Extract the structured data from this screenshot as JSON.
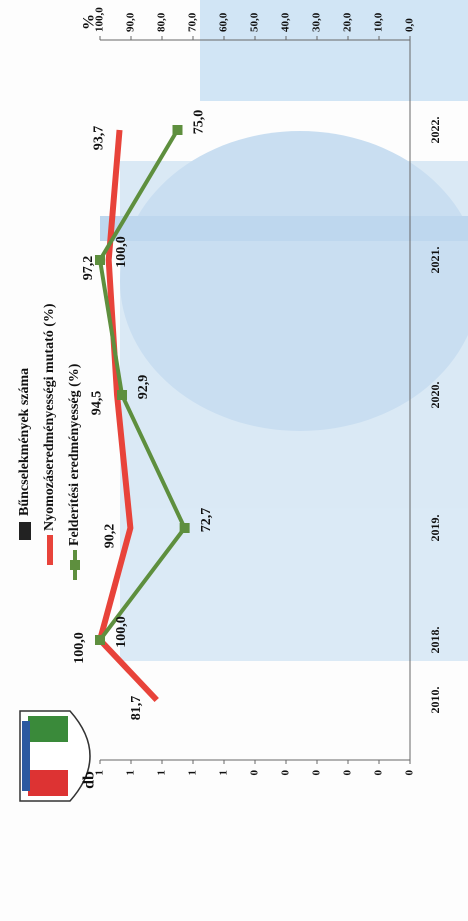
{
  "chart_data": {
    "type": "line",
    "categories": [
      "2010.",
      "2018.",
      "2019.",
      "2020.",
      "2021.",
      "2022."
    ],
    "series": [
      {
        "name": "Bűncselekmények száma",
        "color": "#222222",
        "values": [
          null,
          null,
          null,
          null,
          null,
          null
        ]
      },
      {
        "name": "Nyomozáseredményességi mutató (%)",
        "color": "#e8433a",
        "axis": "y2",
        "values": [
          81.7,
          100.0,
          90.2,
          94.5,
          97.2,
          93.7
        ],
        "value_labels": [
          "81,7",
          "100,0",
          "90,2",
          "94,5",
          "97,2",
          "93,7"
        ]
      },
      {
        "name": "Felderítési eredményesség (%)",
        "color": "#5e8f3e",
        "axis": "y2",
        "marker": "square",
        "values": [
          null,
          100.0,
          72.7,
          92.9,
          100.0,
          75.0
        ],
        "value_labels": [
          null,
          "100,0",
          "72,7",
          "92,9",
          "100,0",
          "75,0"
        ]
      }
    ],
    "ylabel": "db",
    "y2label": "%",
    "ylim": [
      0,
      1
    ],
    "yticks": [
      {
        "value": 0,
        "label": "0"
      },
      {
        "value": 0.1,
        "label": "0"
      },
      {
        "value": 0.2,
        "label": "0"
      },
      {
        "value": 0.3,
        "label": "0"
      },
      {
        "value": 0.4,
        "label": "0"
      },
      {
        "value": 0.5,
        "label": "0"
      },
      {
        "value": 0.6,
        "label": "1"
      },
      {
        "value": 0.7,
        "label": "1"
      },
      {
        "value": 0.8,
        "label": "1"
      },
      {
        "value": 0.9,
        "label": "1"
      },
      {
        "value": 1,
        "label": "1"
      }
    ],
    "y2lim": [
      0,
      100
    ],
    "y2ticks": [
      {
        "value": 0,
        "label": "0,0"
      },
      {
        "value": 10,
        "label": "10,0"
      },
      {
        "value": 20,
        "label": "20,0"
      },
      {
        "value": 30,
        "label": "30,0"
      },
      {
        "value": 40,
        "label": "40,0"
      },
      {
        "value": 50,
        "label": "50,0"
      },
      {
        "value": 60,
        "label": "60,0"
      },
      {
        "value": 70,
        "label": "70,0"
      },
      {
        "value": 80,
        "label": "80,0"
      },
      {
        "value": 90,
        "label": "90,0"
      },
      {
        "value": 100,
        "label": "100,0"
      }
    ],
    "grid": false,
    "legend": "top"
  }
}
